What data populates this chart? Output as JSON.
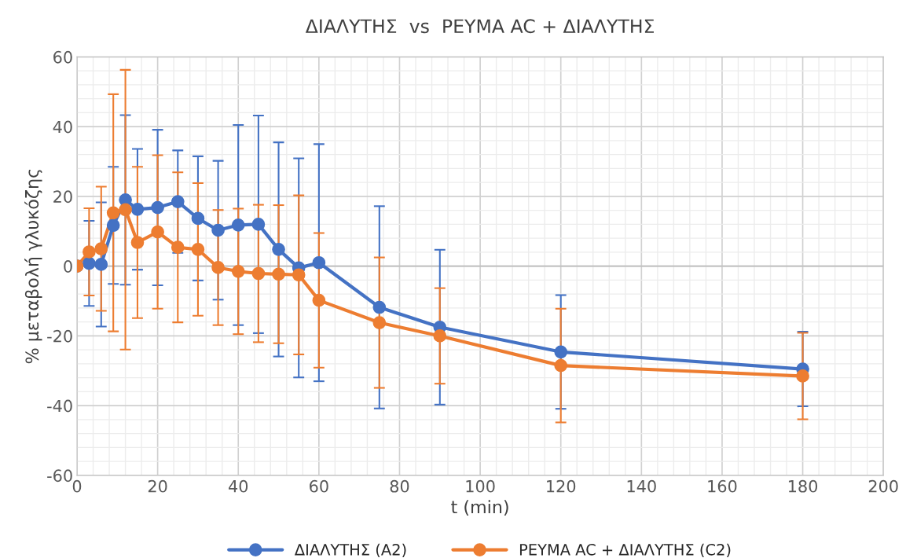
{
  "chart_data": {
    "type": "line",
    "title": "ΔΙΑΛΥΤΗΣ  vs  ΡΕΥΜΑ AC + ΔΙΑΛΥΤΗΣ",
    "xlabel": "t (min)",
    "ylabel": "% μεταβολή γλυκόζης",
    "x": [
      0,
      3,
      6,
      9,
      12,
      15,
      20,
      25,
      30,
      35,
      40,
      45,
      50,
      55,
      60,
      75,
      90,
      120,
      180
    ],
    "series": [
      {
        "name": "ΔΙΑΛΥΤΗΣ (A2)",
        "color": "#4472c4",
        "values": [
          0,
          0.8,
          0.5,
          11.7,
          19,
          16.3,
          16.8,
          18.5,
          13.7,
          10.3,
          11.8,
          12,
          4.8,
          -0.5,
          1,
          -11.8,
          -17.5,
          -24.6,
          -29.5
        ],
        "errors": [
          null,
          12.2,
          17.8,
          16.8,
          24.3,
          17.3,
          22.3,
          14.7,
          17.8,
          19.9,
          28.7,
          31.2,
          30.7,
          31.4,
          34,
          29,
          22.2,
          16.3,
          10.7
        ]
      },
      {
        "name": "ΡΕΥΜΑ AC + ΔΙΑΛΥΤΗΣ (C2)",
        "color": "#ed7d31",
        "values": [
          0,
          4.1,
          5,
          15.3,
          16.2,
          6.8,
          9.8,
          5.4,
          4.8,
          -0.4,
          -1.5,
          -2.1,
          -2.3,
          -2.5,
          -9.8,
          -16.2,
          -20,
          -28.5,
          -31.5
        ],
        "errors": [
          null,
          12.5,
          17.8,
          34,
          40.1,
          21.7,
          22,
          21.5,
          19,
          16.5,
          18,
          19.7,
          19.8,
          22.8,
          19.3,
          18.7,
          13.7,
          16.3,
          12.4
        ]
      }
    ],
    "xlim": [
      0,
      200
    ],
    "xticks": [
      0,
      20,
      40,
      60,
      80,
      100,
      120,
      140,
      160,
      180,
      200
    ],
    "ylim": [
      -60,
      60
    ],
    "yticks": [
      -60,
      -40,
      -20,
      0,
      20,
      40,
      60
    ],
    "grid": true,
    "legend": "bottom",
    "marker": "circle",
    "line_style": "solid"
  }
}
